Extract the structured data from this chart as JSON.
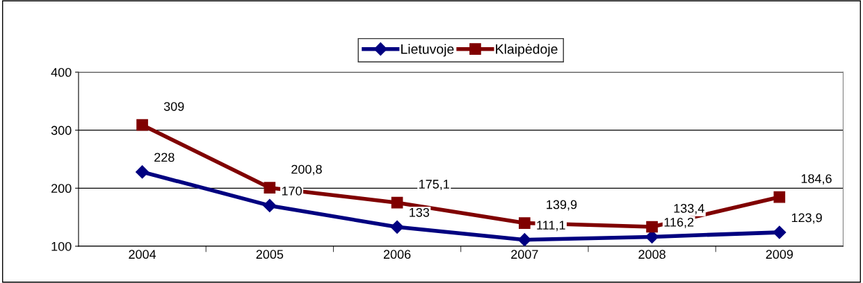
{
  "chart_data": {
    "type": "line",
    "categories": [
      "2004",
      "2005",
      "2006",
      "2007",
      "2008",
      "2009"
    ],
    "series": [
      {
        "name": "Lietuvoje",
        "color": "#000080",
        "marker": "diamond",
        "values": [
          228,
          170,
          133,
          111.1,
          116.2,
          123.9
        ],
        "value_labels": [
          "228",
          "170",
          "133",
          "111,1",
          "116,2",
          "123,9"
        ]
      },
      {
        "name": "Klaipėdoje",
        "color": "#800000",
        "marker": "square",
        "values": [
          309,
          200.8,
          175.1,
          139.9,
          133.4,
          184.6
        ],
        "value_labels": [
          "309",
          "200,8",
          "175,1",
          "139,9",
          "133,4",
          "184,6"
        ]
      }
    ],
    "ylim": [
      100,
      400
    ],
    "yticks": [
      100,
      200,
      300,
      400
    ],
    "grid": "y",
    "legend": "top",
    "line_style": "solid"
  }
}
